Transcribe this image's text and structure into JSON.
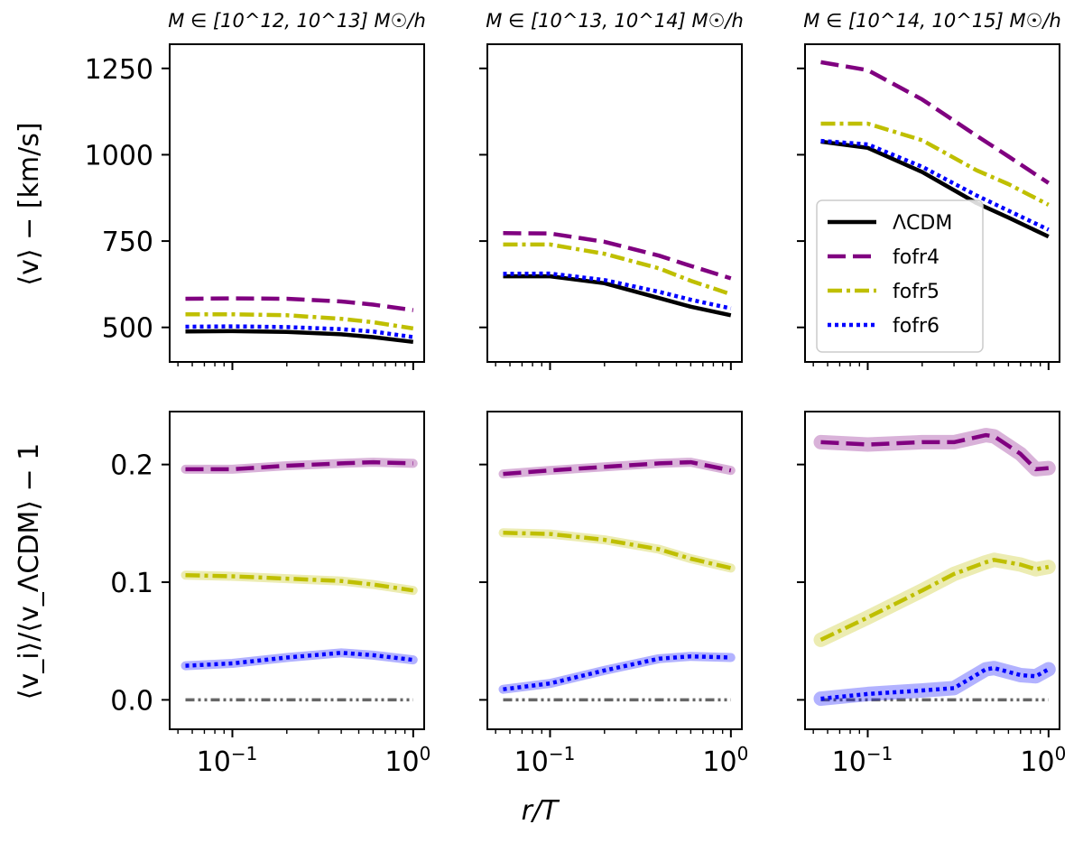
{
  "figure": {
    "ylabel_top": "⟨v⟩ − [km/s]",
    "ylabel_bottom": "⟨v_i⟩/⟨v_ΛCDM⟩ − 1",
    "xlabel": "r/T",
    "colors": {
      "LCDM": "#000000",
      "fofr4": "#800080",
      "fofr5": "#bfbf00",
      "fofr6": "#0000ff",
      "baseline": "#666666"
    },
    "legend": [
      "ΛCDM",
      "fofr4",
      "fofr5",
      "fofr6"
    ],
    "x_ticks": [
      "10^{-1}",
      "10^{0}"
    ],
    "y_ticks_top": [
      "500",
      "750",
      "1000",
      "1250"
    ],
    "y_ticks_bottom": [
      "0.0",
      "0.1",
      "0.2"
    ]
  },
  "chart_data": [
    {
      "type": "line",
      "title": "M ∈ [10^12, 10^13] M☉/h",
      "xscale": "log",
      "xlim": [
        0.045,
        1.15
      ],
      "ylim": [
        400,
        1320
      ],
      "x": [
        0.055,
        0.1,
        0.2,
        0.4,
        0.6,
        1.0
      ],
      "series": [
        {
          "name": "ΛCDM",
          "values": [
            488,
            489,
            487,
            480,
            472,
            458
          ]
        },
        {
          "name": "fofr4",
          "values": [
            583,
            584,
            583,
            575,
            566,
            550
          ]
        },
        {
          "name": "fofr5",
          "values": [
            538,
            538,
            535,
            525,
            515,
            497
          ]
        },
        {
          "name": "fofr6",
          "values": [
            502,
            503,
            501,
            495,
            488,
            472
          ]
        }
      ]
    },
    {
      "type": "line",
      "title": "M ∈ [10^13, 10^14] M☉/h",
      "xscale": "log",
      "xlim": [
        0.045,
        1.15
      ],
      "ylim": [
        400,
        1320
      ],
      "x": [
        0.055,
        0.1,
        0.2,
        0.4,
        0.6,
        1.0
      ],
      "series": [
        {
          "name": "ΛCDM",
          "values": [
            648,
            648,
            628,
            585,
            560,
            535
          ]
        },
        {
          "name": "fofr4",
          "values": [
            773,
            772,
            748,
            708,
            678,
            642
          ]
        },
        {
          "name": "fofr5",
          "values": [
            740,
            740,
            713,
            671,
            635,
            596
          ]
        },
        {
          "name": "fofr6",
          "values": [
            655,
            656,
            637,
            603,
            580,
            555
          ]
        }
      ]
    },
    {
      "type": "line",
      "title": "M ∈ [10^14, 10^15] M☉/h",
      "xscale": "log",
      "xlim": [
        0.045,
        1.15
      ],
      "ylim": [
        400,
        1320
      ],
      "x": [
        0.055,
        0.1,
        0.2,
        0.4,
        0.6,
        1.0
      ],
      "legend_loc": "center-right",
      "series": [
        {
          "name": "ΛCDM",
          "values": [
            1038,
            1020,
            950,
            860,
            818,
            763
          ]
        },
        {
          "name": "fofr4",
          "values": [
            1268,
            1245,
            1160,
            1055,
            995,
            918
          ]
        },
        {
          "name": "fofr5",
          "values": [
            1090,
            1090,
            1042,
            955,
            915,
            855
          ]
        },
        {
          "name": "fofr6",
          "values": [
            1040,
            1030,
            965,
            882,
            838,
            783
          ]
        }
      ]
    },
    {
      "type": "line",
      "xscale": "log",
      "xlim": [
        0.045,
        1.15
      ],
      "ylim": [
        -0.025,
        0.245
      ],
      "x": [
        0.055,
        0.1,
        0.2,
        0.4,
        0.6,
        1.0
      ],
      "series": [
        {
          "name": "fofr4",
          "values": [
            0.196,
            0.196,
            0.199,
            0.201,
            0.202,
            0.201
          ]
        },
        {
          "name": "fofr5",
          "values": [
            0.106,
            0.105,
            0.103,
            0.101,
            0.098,
            0.093
          ]
        },
        {
          "name": "fofr6",
          "values": [
            0.029,
            0.031,
            0.036,
            0.04,
            0.038,
            0.034
          ]
        },
        {
          "name": "baseline",
          "values": [
            0,
            0,
            0,
            0,
            0,
            0
          ]
        }
      ]
    },
    {
      "type": "line",
      "xscale": "log",
      "xlim": [
        0.045,
        1.15
      ],
      "ylim": [
        -0.025,
        0.245
      ],
      "x": [
        0.055,
        0.1,
        0.2,
        0.4,
        0.6,
        1.0
      ],
      "series": [
        {
          "name": "fofr4",
          "values": [
            0.192,
            0.195,
            0.198,
            0.201,
            0.202,
            0.195
          ]
        },
        {
          "name": "fofr5",
          "values": [
            0.142,
            0.141,
            0.136,
            0.128,
            0.12,
            0.112
          ]
        },
        {
          "name": "fofr6",
          "values": [
            0.009,
            0.014,
            0.025,
            0.035,
            0.037,
            0.036
          ]
        },
        {
          "name": "baseline",
          "values": [
            0,
            0,
            0,
            0,
            0,
            0
          ]
        }
      ]
    },
    {
      "type": "line",
      "xscale": "log",
      "xlim": [
        0.045,
        1.15
      ],
      "ylim": [
        -0.025,
        0.245
      ],
      "x": [
        0.055,
        0.1,
        0.2,
        0.3,
        0.45,
        0.5,
        0.7,
        0.85,
        1.0
      ],
      "series": [
        {
          "name": "fofr4",
          "values": [
            0.219,
            0.217,
            0.219,
            0.219,
            0.225,
            0.224,
            0.209,
            0.196,
            0.197
          ]
        },
        {
          "name": "fofr5",
          "values": [
            0.051,
            0.07,
            0.093,
            0.107,
            0.117,
            0.119,
            0.115,
            0.111,
            0.113
          ]
        },
        {
          "name": "fofr6",
          "values": [
            0.001,
            0.005,
            0.008,
            0.01,
            0.026,
            0.027,
            0.021,
            0.02,
            0.026
          ]
        },
        {
          "name": "baseline",
          "values": [
            0,
            0,
            0,
            0,
            0,
            0,
            0,
            0,
            0
          ]
        }
      ]
    }
  ]
}
